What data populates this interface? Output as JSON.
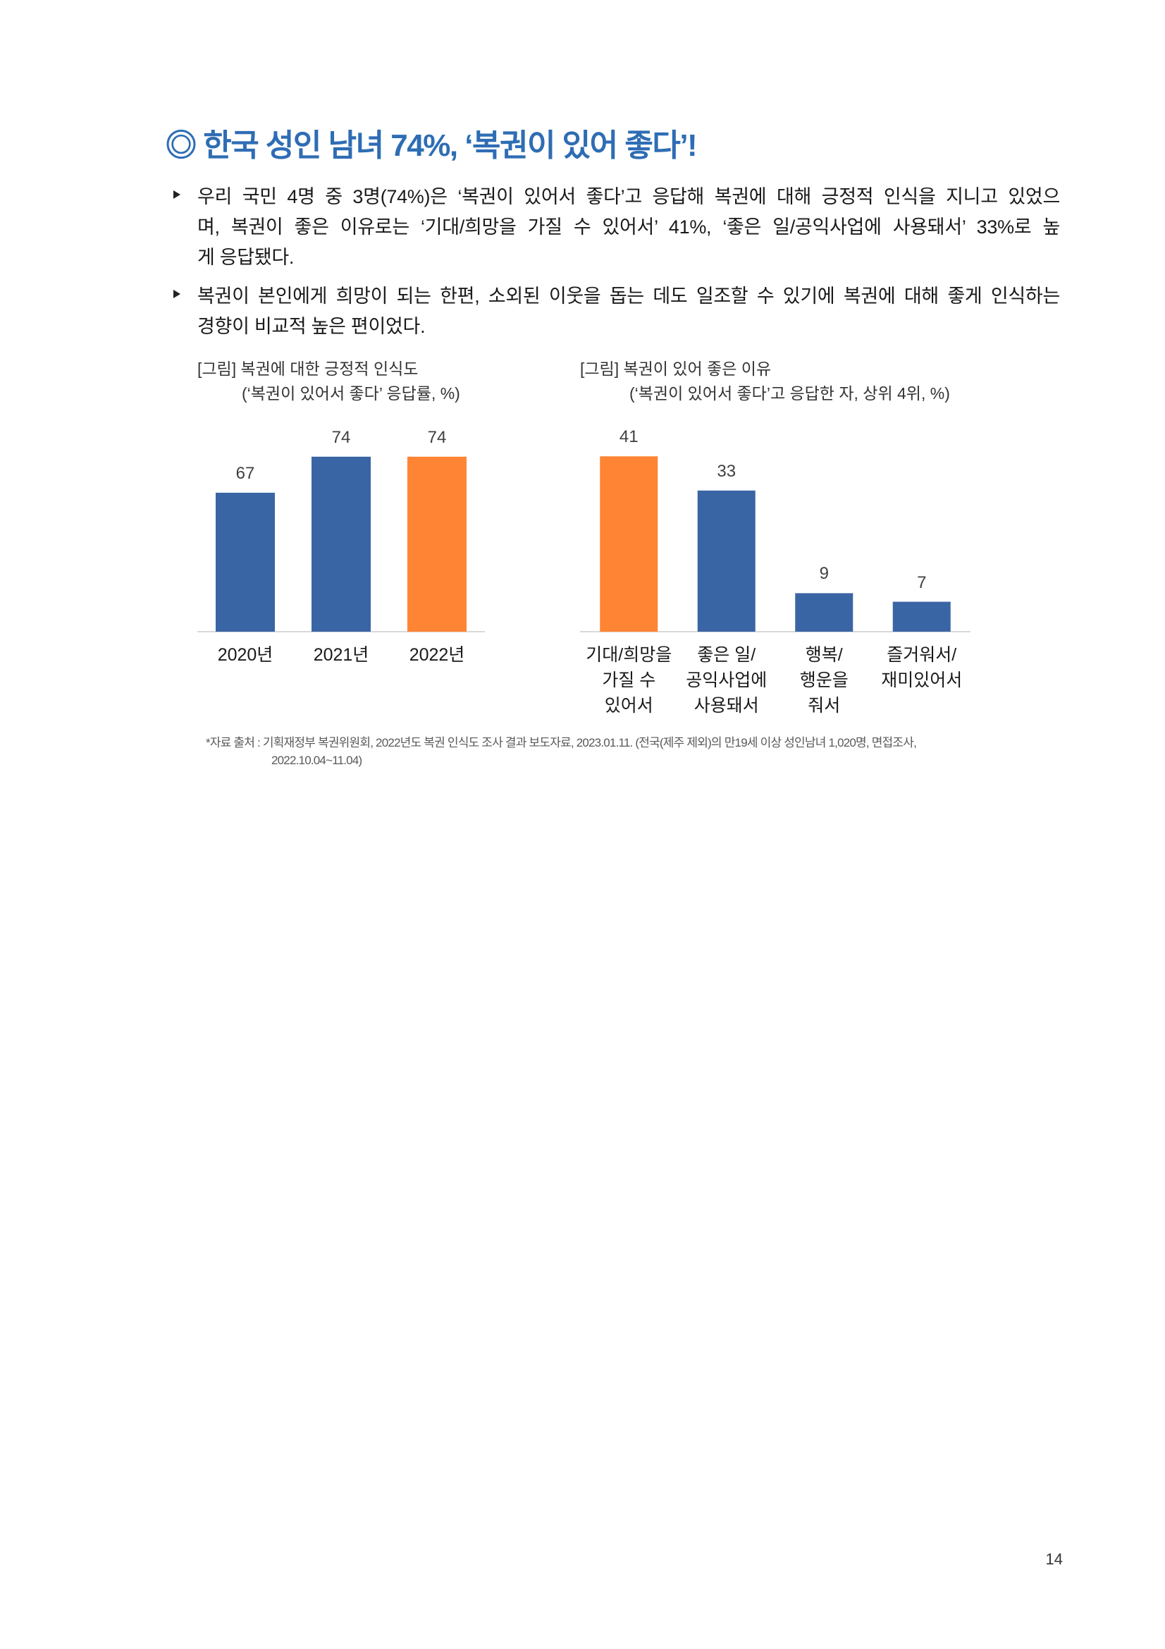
{
  "title": "◎ 한국 성인 남녀 74%, ‘복권이 있어 좋다’!",
  "colors": {
    "title": "#2E6DB4",
    "axis": "#D9D9D9"
  },
  "bullets": [
    {
      "lines": [
        "우리 국민 4명 중 3명(74%)은 ‘복권이 있어서 좋다’고 응답해 복권에 대해 긍정적 인식을 지니고 있었으",
        "며, 복권이 좋은 이유로는 ‘기대/희망을 가질 수 있어서’ 41%, ‘좋은 일/공익사업에 사용돼서’ 33%로 높",
        "게 응답됐다."
      ]
    },
    {
      "lines": [
        "복권이 본인에게 희망이 되는 한편, 소외된 이웃을 돕는 데도 일조할 수 있기에 복권에 대해 좋게 인식하는",
        "경향이 비교적 높은 편이었다."
      ]
    }
  ],
  "chart_data": [
    {
      "type": "bar",
      "title": "[그림] 복권에 대한 긍정적 인식도",
      "subtitle": "(‘복권이 있어서 좋다’ 응답률, %)",
      "categories": [
        "2020년",
        "2021년",
        "2022년"
      ],
      "values": [
        67,
        74,
        74
      ],
      "bar_colors": [
        "#3A65A5",
        "#3A65A5",
        "#FF8433"
      ],
      "ylim": [
        40,
        80
      ],
      "grid": false,
      "data_labels": true
    },
    {
      "type": "bar",
      "title": "[그림] 복권이 있어 좋은 이유",
      "subtitle": "(‘복권이 있어서 좋다’고 응답한 자, 상위 4위, %)",
      "categories": [
        "기대/희망을\n가질 수\n있어서",
        "좋은 일/\n공익사업에\n사용돼서",
        "행복/\n행운을\n줘서",
        "즐거워서/\n재미있어서"
      ],
      "values": [
        41,
        33,
        9,
        7
      ],
      "bar_colors": [
        "#FF8433",
        "#3A65A5",
        "#3A65A5",
        "#3A65A5"
      ],
      "ylim": [
        0,
        45
      ],
      "grid": false,
      "data_labels": true
    }
  ],
  "source_note": {
    "lines": [
      "*자료 출처 : 기획재정부 복권위원회, 2022년도 복권 인식도 조사 결과 보도자료, 2023.01.11. (전국(제주 제외)의 만19세 이상 성인남녀 1,020명, 면접조사,",
      "2022.10.04~11.04)"
    ]
  },
  "page_number": "14"
}
